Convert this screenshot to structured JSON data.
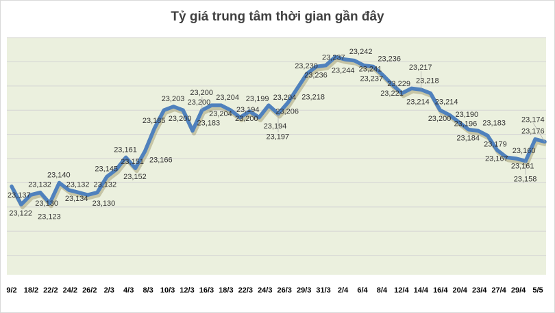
{
  "chart_data": {
    "type": "line",
    "title": "Tỷ giá trung tâm thời gian gần đây",
    "xlabel": "",
    "ylabel": "",
    "x_tick_labels": [
      "9/2",
      "18/2",
      "22/2",
      "24/2",
      "26/2",
      "2/3",
      "4/3",
      "8/3",
      "10/3",
      "12/3",
      "16/3",
      "18/3",
      "22/3",
      "24/3",
      "26/3",
      "29/3",
      "31/3",
      "2/4",
      "6/4",
      "8/4",
      "12/4",
      "14/4",
      "16/4",
      "20/4",
      "23/4",
      "27/4",
      "29/4",
      "5/5"
    ],
    "values": [
      23137,
      23122,
      23130,
      23132,
      23123,
      23140,
      23134,
      23132,
      23130,
      23132,
      23145,
      23151,
      23161,
      23152,
      23166,
      23185,
      23200,
      23203,
      23200,
      23183,
      23200,
      23204,
      23204,
      23200,
      23194,
      23199,
      23194,
      23204,
      23197,
      23206,
      23218,
      23230,
      23236,
      23237,
      23244,
      23242,
      23241,
      23237,
      23236,
      23229,
      23221,
      23214,
      23218,
      23217,
      23214,
      23200,
      23196,
      23190,
      23184,
      23183,
      23179,
      23167,
      23161,
      23160,
      23158,
      23176,
      23174
    ],
    "ylim": [
      23064,
      23260
    ],
    "y_gridline_step": 20,
    "grid": true,
    "y_axis_labels_shown": false,
    "legend": "none",
    "colors": {
      "line": "#4f81bd",
      "plot_background": "#ebf0de",
      "gridline": "#d4d4d4",
      "title": "#404040"
    }
  }
}
